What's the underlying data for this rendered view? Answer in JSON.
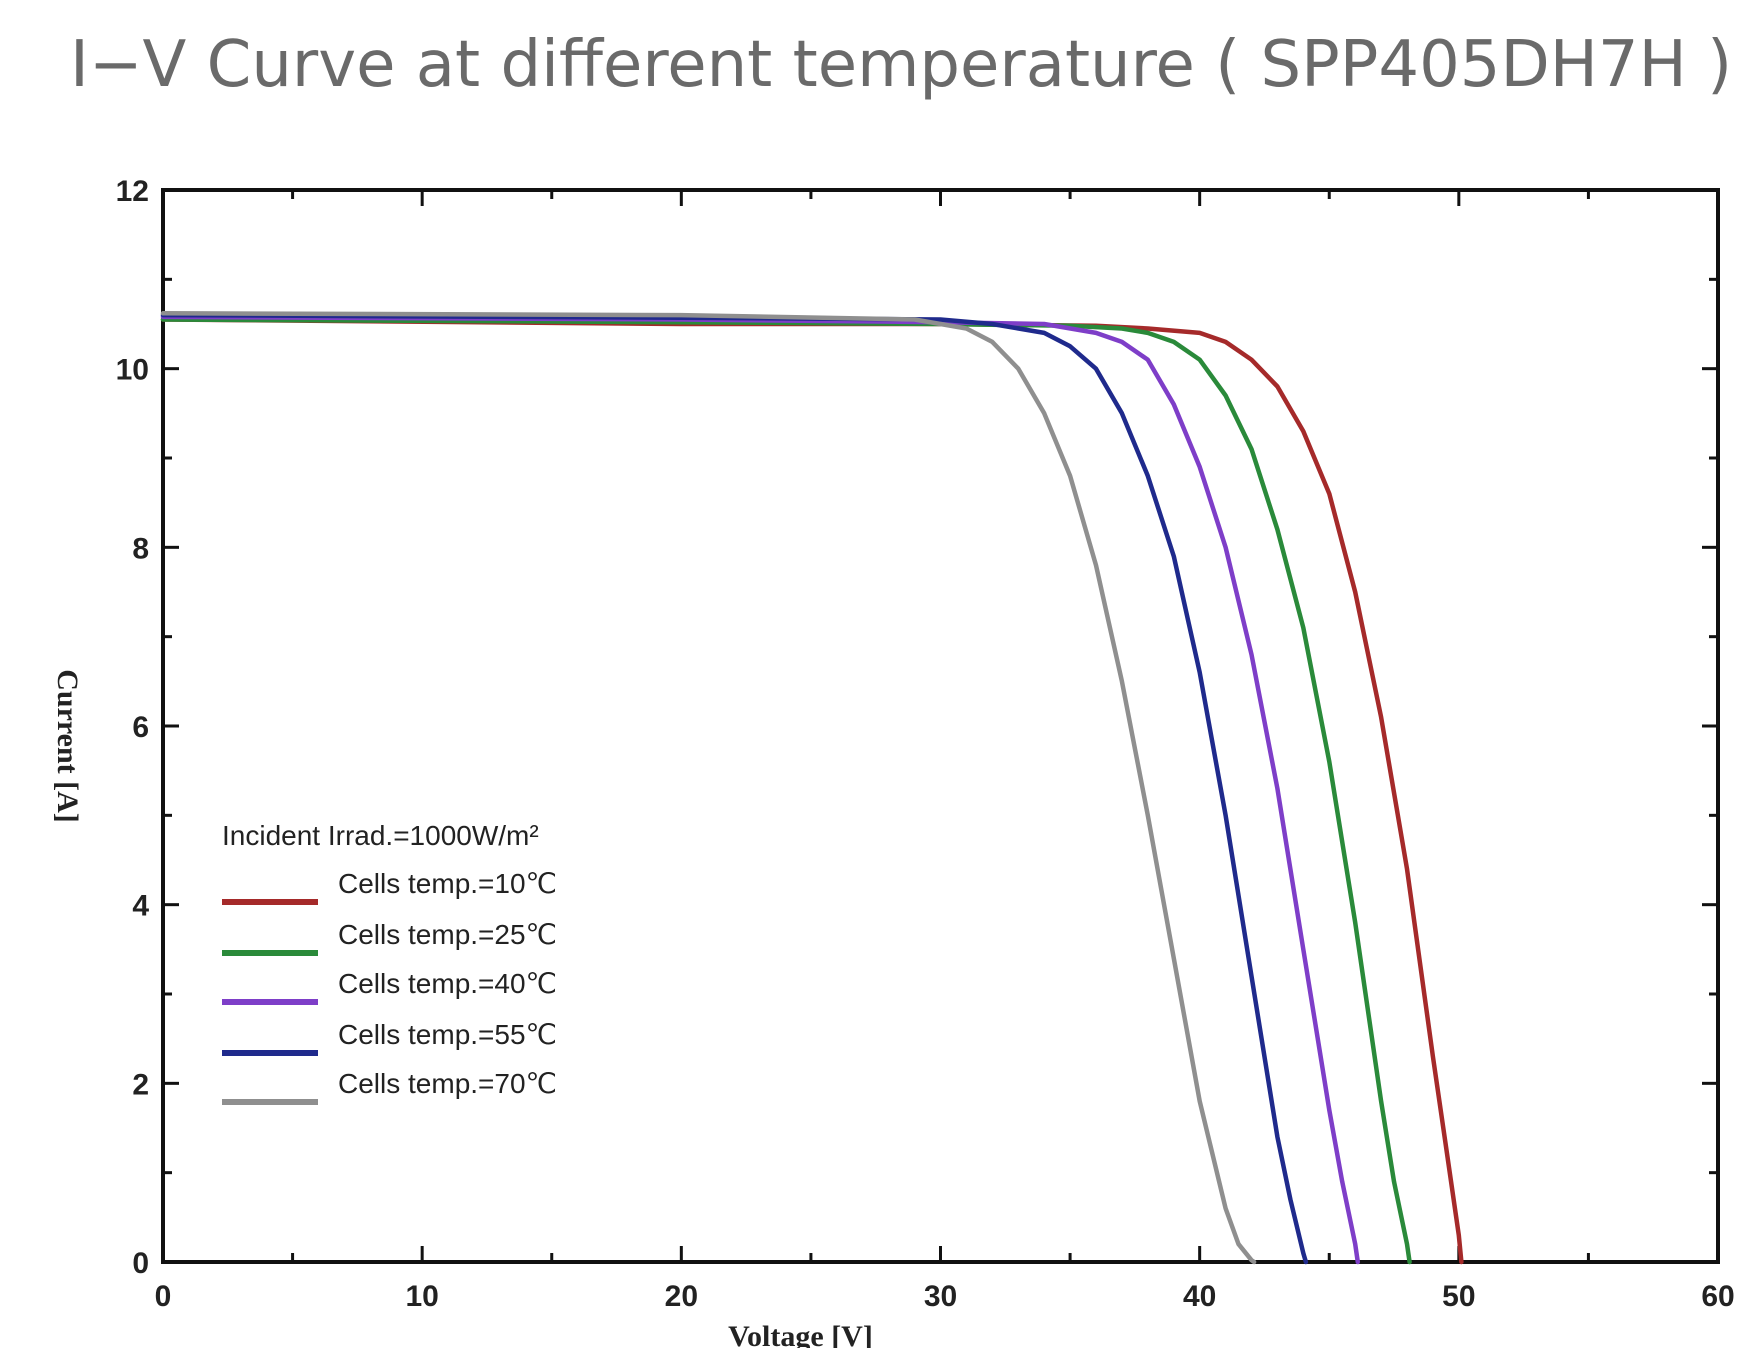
{
  "title": "I−V Curve at different temperature ( SPP405DH7H )",
  "chart_data": {
    "type": "line",
    "title": "I−V Curve at different temperature ( SPP405DH7H )",
    "xlabel": "Voltage [V]",
    "ylabel": "Current [A]",
    "xlim": [
      0,
      60
    ],
    "ylim": [
      0,
      12
    ],
    "xticks": [
      "0",
      "10",
      "20",
      "30",
      "40",
      "50",
      "60"
    ],
    "yticks": [
      "0",
      "2",
      "4",
      "6",
      "8",
      "10",
      "12"
    ],
    "grid": false,
    "legend_position": "lower-left",
    "legend_title": "Incident Irrad.=1000W/m²",
    "series": [
      {
        "name": "Cells temp.=10℃",
        "color": "#a52a2a",
        "x": [
          0,
          20,
          30,
          36,
          38,
          40,
          41,
          42,
          43,
          44,
          45,
          46,
          47,
          48,
          49,
          49.5,
          50,
          50.1
        ],
        "y": [
          10.55,
          10.5,
          10.5,
          10.48,
          10.45,
          10.4,
          10.3,
          10.1,
          9.8,
          9.3,
          8.6,
          7.5,
          6.1,
          4.4,
          2.3,
          1.3,
          0.3,
          0
        ]
      },
      {
        "name": "Cells temp.=25℃",
        "color": "#2a8a3a",
        "x": [
          0,
          20,
          30,
          35,
          37,
          38,
          39,
          40,
          41,
          42,
          43,
          44,
          45,
          46,
          47,
          47.5,
          48,
          48.1
        ],
        "y": [
          10.55,
          10.52,
          10.5,
          10.48,
          10.45,
          10.4,
          10.3,
          10.1,
          9.7,
          9.1,
          8.2,
          7.1,
          5.6,
          3.8,
          1.8,
          0.9,
          0.2,
          0
        ]
      },
      {
        "name": "Cells temp.=40℃",
        "color": "#7e3ec8",
        "x": [
          0,
          20,
          30,
          34,
          36,
          37,
          38,
          39,
          40,
          41,
          42,
          43,
          44,
          45,
          45.5,
          46,
          46.1
        ],
        "y": [
          10.58,
          10.55,
          10.52,
          10.5,
          10.4,
          10.3,
          10.1,
          9.6,
          8.9,
          8.0,
          6.8,
          5.3,
          3.5,
          1.7,
          0.9,
          0.2,
          0
        ]
      },
      {
        "name": "Cells temp.=55℃",
        "color": "#1f2a8c",
        "x": [
          0,
          20,
          30,
          32,
          34,
          35,
          36,
          37,
          38,
          39,
          40,
          41,
          42,
          43,
          43.5,
          44,
          44.1
        ],
        "y": [
          10.6,
          10.57,
          10.55,
          10.5,
          10.4,
          10.25,
          10.0,
          9.5,
          8.8,
          7.9,
          6.6,
          5.0,
          3.2,
          1.4,
          0.7,
          0.1,
          0
        ]
      },
      {
        "name": "Cells temp.=70℃",
        "color": "#8f8f8f",
        "x": [
          0,
          20,
          29,
          31,
          32,
          33,
          34,
          35,
          36,
          37,
          38,
          39,
          40,
          41,
          41.5,
          42,
          42.1
        ],
        "y": [
          10.62,
          10.6,
          10.55,
          10.45,
          10.3,
          10.0,
          9.5,
          8.8,
          7.8,
          6.5,
          5.0,
          3.4,
          1.8,
          0.6,
          0.2,
          0.02,
          0
        ]
      }
    ]
  }
}
